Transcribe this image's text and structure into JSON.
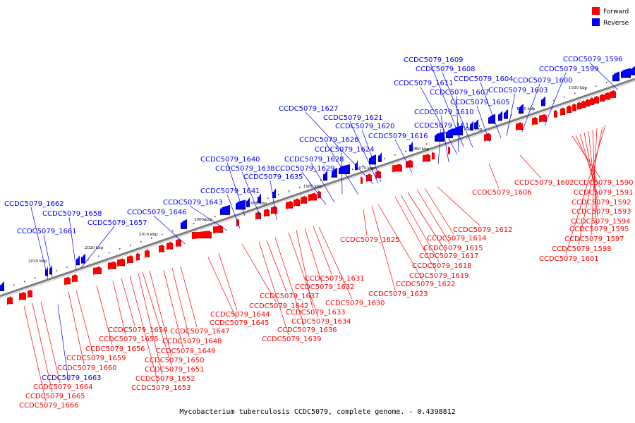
{
  "caption": "Mycobacterium tuberculosis CCDC5079, complete genome. - 0.4398812",
  "legend": [
    {
      "label": "Forward",
      "color": "#ff0000"
    },
    {
      "label": "Reverse",
      "color": "#0000ff"
    }
  ],
  "colors": {
    "forward": "#ff0000",
    "reverse": "#0000ff",
    "backbone": "#808080"
  },
  "ticks": [
    "2030 kbp",
    "2020 kbp",
    "2010 kbp",
    "2000 kbp",
    "1990 kbp",
    "1980 kbp",
    "1970 kbp",
    "1960 kbp",
    "1950 kbp",
    "1940 kbp",
    "1930 kbp"
  ],
  "reverse_labels": [
    "CCDC5079_1662",
    "CCDC5079_1661",
    "CCDC5079_1658",
    "CCDC5079_1657",
    "CCDC5079_1646",
    "CCDC5079_1643",
    "CCDC5079_1641",
    "CCDC5079_1640",
    "CCDC5079_1638",
    "CCDC5079_1635",
    "CCDC5079_1629",
    "CCDC5079_1628",
    "CCDC5079_1624",
    "CCDC5079_1626",
    "CCDC5079_1627",
    "CCDC5079_1621",
    "CCDC5079_1620",
    "CCDC5079_1616",
    "CCDC5079_1613",
    "CCDC5079_1610",
    "CCDC5079_1611",
    "CCDC5079_1607",
    "CCDC5079_1609",
    "CCDC5079_1608",
    "CCDC5079_1605",
    "CCDC5079_1604",
    "CCDC5079_1603",
    "CCDC5079_1600",
    "CCDC5079_1599",
    "CCDC5079_1596",
    "CCDC5079_1663"
  ],
  "forward_labels": [
    "CCDC5079_1590",
    "CCDC5079_1591",
    "CCDC5079_1592",
    "CCDC5079_1593",
    "CCDC5079_1594",
    "CCDC5079_1595",
    "CCDC5079_1597",
    "CCDC5079_1598",
    "CCDC5079_1601",
    "CCDC5079_1602",
    "CCDC5079_1606",
    "CCDC5079_1612",
    "CCDC5079_1614",
    "CCDC5079_1615",
    "CCDC5079_1617",
    "CCDC5079_1618",
    "CCDC5079_1619",
    "CCDC5079_1622",
    "CCDC5079_1623",
    "CCDC5079_1625",
    "CCDC5079_1630",
    "CCDC5079_1631",
    "CCDC5079_1632",
    "CCDC5079_1633",
    "CCDC5079_1634",
    "CCDC5079_1636",
    "CCDC5079_1637",
    "CCDC5079_1639",
    "CCDC5079_1642",
    "CCDC5079_1644",
    "CCDC5079_1645",
    "CCDC5079_1647",
    "CCDC5079_1648",
    "CCDC5079_1649",
    "CCDC5079_1650",
    "CCDC5079_1651",
    "CCDC5079_1652",
    "CCDC5079_1653",
    "CCDC5079_1654",
    "CCDC5079_1655",
    "CCDC5079_1656",
    "CCDC5079_1659",
    "CCDC5079_1660",
    "CCDC5079_1664",
    "CCDC5079_1665",
    "CCDC5079_1666"
  ]
}
